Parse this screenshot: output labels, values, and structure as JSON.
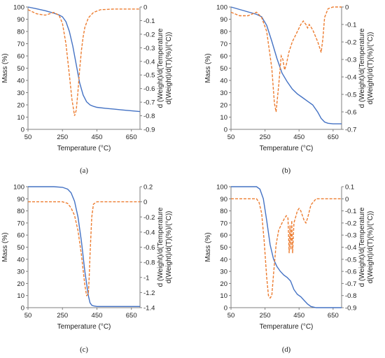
{
  "colors": {
    "mass": "#4472C4",
    "derivative": "#ED7D31",
    "axis": "#7F7F7F"
  },
  "chart_data": [
    {
      "type": "line",
      "panel_label": "(a)",
      "xlabel": "Temperature (°C)",
      "ylabel": "Mass (%)",
      "y2label_line1": "d (Weight)/d(Temperature",
      "y2label_line2": "d(Weight)/d(T)(%)/(°C))",
      "xlim": [
        50,
        700
      ],
      "xticks": [
        50,
        250,
        450,
        650
      ],
      "ylim": [
        0,
        100
      ],
      "yticks": [
        0,
        10,
        20,
        30,
        40,
        50,
        60,
        70,
        80,
        90,
        100
      ],
      "y2lim": [
        -0.9,
        0
      ],
      "y2ticks": [
        "0",
        "-0.1",
        "-0.2",
        "-0.3",
        "-0.4",
        "-0.5",
        "-0.6",
        "-0.7",
        "-0.8",
        "-0.9"
      ],
      "y2values": [
        0,
        -0.1,
        -0.2,
        -0.3,
        -0.4,
        -0.5,
        -0.6,
        -0.7,
        -0.8,
        -0.9
      ],
      "series": [
        {
          "axis": "left",
          "style": "solid",
          "x": [
            50,
            100,
            150,
            200,
            230,
            250,
            270,
            290,
            310,
            330,
            350,
            370,
            390,
            410,
            430,
            450,
            500,
            550,
            600,
            650,
            700
          ],
          "y": [
            100,
            98.5,
            97,
            95,
            93.5,
            92,
            88,
            80,
            68,
            53,
            38,
            28,
            22.5,
            20,
            18.8,
            18,
            17.2,
            16.5,
            15.8,
            15.2,
            14.5
          ]
        },
        {
          "axis": "right",
          "style": "dashed",
          "x": [
            50,
            100,
            150,
            200,
            230,
            250,
            270,
            290,
            305,
            320,
            330,
            340,
            350,
            360,
            370,
            380,
            400,
            430,
            470,
            550,
            700
          ],
          "y": [
            -0.02,
            -0.05,
            -0.06,
            -0.04,
            -0.06,
            -0.12,
            -0.27,
            -0.5,
            -0.68,
            -0.8,
            -0.76,
            -0.62,
            -0.46,
            -0.32,
            -0.22,
            -0.15,
            -0.08,
            -0.04,
            -0.02,
            -0.015,
            -0.015
          ]
        }
      ]
    },
    {
      "type": "line",
      "panel_label": "(b)",
      "xlabel": "Temperature (°C)",
      "ylabel": "Mass (%)",
      "y2label_line1": "d (Weight)/d(Temperature",
      "y2label_line2": "d(Weight)/d(T)(%)/(°C))",
      "xlim": [
        50,
        700
      ],
      "xticks": [
        50,
        250,
        450,
        650
      ],
      "ylim": [
        0,
        100
      ],
      "yticks": [
        0,
        10,
        20,
        30,
        40,
        50,
        60,
        70,
        80,
        90,
        100
      ],
      "y2lim": [
        -0.7,
        0
      ],
      "y2ticks": [
        "0",
        "-0.1",
        "-0.2",
        "-0.3",
        "-0.4",
        "-0.5",
        "-0.6",
        "-0.7"
      ],
      "y2values": [
        0,
        -0.1,
        -0.2,
        -0.3,
        -0.4,
        -0.5,
        -0.6,
        -0.7
      ],
      "series": [
        {
          "axis": "left",
          "style": "solid",
          "x": [
            50,
            100,
            150,
            200,
            230,
            260,
            290,
            320,
            350,
            380,
            410,
            440,
            470,
            500,
            530,
            560,
            580,
            600,
            620,
            650,
            700
          ],
          "y": [
            100,
            98,
            96,
            94,
            92,
            85,
            72,
            58,
            46,
            39,
            33,
            29,
            26,
            23,
            20,
            14,
            9,
            6,
            5,
            4.5,
            4.5
          ]
        },
        {
          "axis": "right",
          "style": "dashed",
          "x": [
            50,
            100,
            150,
            200,
            230,
            260,
            290,
            305,
            315,
            330,
            345,
            355,
            365,
            375,
            390,
            410,
            430,
            460,
            475,
            490,
            500,
            510,
            530,
            560,
            580,
            590,
            600,
            620,
            650,
            700
          ],
          "y": [
            -0.03,
            -0.05,
            -0.05,
            -0.03,
            -0.06,
            -0.14,
            -0.35,
            -0.55,
            -0.6,
            -0.45,
            -0.28,
            -0.3,
            -0.36,
            -0.33,
            -0.26,
            -0.2,
            -0.16,
            -0.1,
            -0.08,
            -0.1,
            -0.12,
            -0.1,
            -0.13,
            -0.2,
            -0.26,
            -0.18,
            -0.06,
            -0.01,
            0,
            0
          ]
        }
      ]
    },
    {
      "type": "line",
      "panel_label": "(c)",
      "xlabel": "Temperature (°C)",
      "ylabel": "Mass (%)",
      "y2label_line1": "d (Weight)/d(Temperature",
      "y2label_line2": "d(Weight)/d(T)(%)/(°C))",
      "xlim": [
        50,
        700
      ],
      "xticks": [
        50,
        250,
        450,
        650
      ],
      "ylim": [
        0,
        100
      ],
      "yticks": [
        0,
        10,
        20,
        30,
        40,
        50,
        60,
        70,
        80,
        90,
        100
      ],
      "y2lim": [
        -1.4,
        0.2
      ],
      "y2ticks": [
        "0.2",
        "0",
        "-0.2",
        "-0.4",
        "-0.6",
        "-0.8",
        "-1",
        "-1.2",
        "-1.4"
      ],
      "y2values": [
        0.2,
        0,
        -0.2,
        -0.4,
        -0.6,
        -0.8,
        -1.0,
        -1.2,
        -1.4
      ],
      "series": [
        {
          "axis": "left",
          "style": "solid",
          "x": [
            50,
            100,
            150,
            200,
            250,
            280,
            300,
            320,
            340,
            360,
            380,
            400,
            410,
            420,
            430,
            450,
            500,
            600,
            700
          ],
          "y": [
            100,
            100,
            100,
            100,
            99.5,
            98,
            95,
            88,
            75,
            55,
            30,
            10,
            4,
            2,
            1.5,
            1,
            1,
            1,
            1
          ]
        },
        {
          "axis": "right",
          "style": "dashed",
          "x": [
            50,
            150,
            250,
            280,
            300,
            320,
            340,
            360,
            380,
            390,
            400,
            405,
            410,
            420,
            430,
            450,
            500,
            700
          ],
          "y": [
            0,
            0,
            0,
            -0.02,
            -0.08,
            -0.18,
            -0.38,
            -0.7,
            -1.1,
            -1.24,
            -1.22,
            -1.0,
            -0.7,
            -0.2,
            -0.03,
            0,
            0,
            0
          ]
        }
      ]
    },
    {
      "type": "line",
      "panel_label": "(d)",
      "xlabel": "Temperature (°C)",
      "ylabel": "Mass (%)",
      "y2label_line1": "d (Weight)/d(Temperature",
      "y2label_line2": "d(Weight)/d(T)(%)/(°C))",
      "xlim": [
        50,
        700
      ],
      "xticks": [
        50,
        250,
        450,
        650
      ],
      "ylim": [
        0,
        100
      ],
      "yticks": [
        0,
        10,
        20,
        30,
        40,
        50,
        60,
        70,
        80,
        90,
        100
      ],
      "y2lim": [
        -0.9,
        0.1
      ],
      "y2ticks": [
        "0.1",
        "0",
        "-0.1",
        "-0.2",
        "-0.3",
        "-0.4",
        "-0.5",
        "-0.6",
        "-0.7",
        "-0.8",
        "-0.9"
      ],
      "y2values": [
        0.1,
        0,
        -0.1,
        -0.2,
        -0.3,
        -0.4,
        -0.5,
        -0.6,
        -0.7,
        -0.8,
        -0.9
      ],
      "series": [
        {
          "axis": "left",
          "style": "solid",
          "x": [
            50,
            100,
            150,
            200,
            220,
            240,
            260,
            280,
            300,
            320,
            340,
            360,
            380,
            400,
            420,
            440,
            460,
            480,
            500,
            520,
            550,
            600,
            700
          ],
          "y": [
            100,
            100,
            100,
            100,
            98,
            90,
            72,
            52,
            40,
            34,
            30,
            27,
            25,
            22,
            15,
            11,
            9,
            6,
            3,
            1,
            0,
            0,
            0
          ]
        },
        {
          "axis": "right",
          "style": "dashed",
          "x": [
            50,
            150,
            200,
            215,
            230,
            245,
            260,
            270,
            280,
            290,
            300,
            315,
            330,
            350,
            365,
            375,
            385,
            392,
            397,
            402,
            407,
            412,
            420,
            430,
            440,
            450,
            460,
            470,
            480,
            490,
            500,
            520,
            550,
            600,
            700
          ],
          "y": [
            0,
            0,
            0,
            -0.03,
            -0.12,
            -0.35,
            -0.65,
            -0.8,
            -0.82,
            -0.8,
            -0.62,
            -0.38,
            -0.26,
            -0.2,
            -0.16,
            -0.14,
            -0.16,
            -0.45,
            -0.22,
            -0.42,
            -0.18,
            -0.45,
            -0.2,
            -0.15,
            -0.1,
            -0.08,
            -0.1,
            -0.14,
            -0.18,
            -0.2,
            -0.16,
            -0.05,
            0,
            0,
            0
          ]
        }
      ]
    }
  ]
}
